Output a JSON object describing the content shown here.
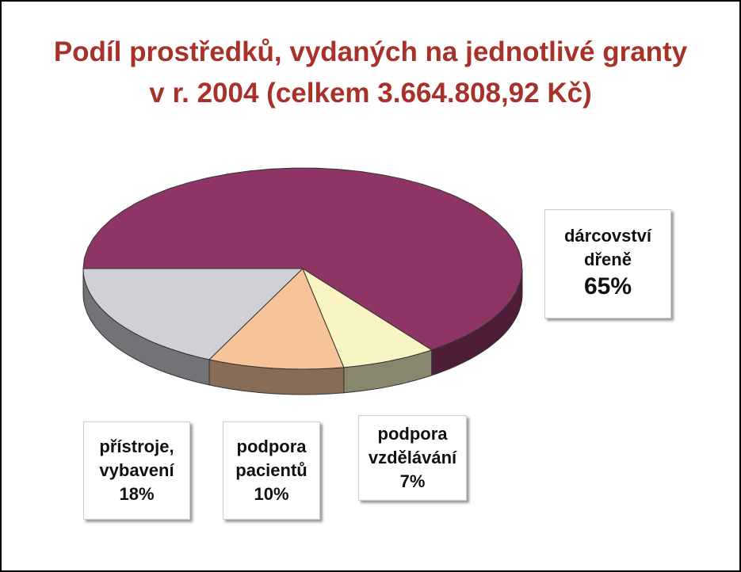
{
  "chart_data": {
    "type": "pie",
    "title": "Podíl prostředků, vydaných na jednotlivé granty",
    "subtitle": "v r. 2004  (celkem 3.664.808,92 Kč)",
    "categories": [
      "dárcovství dřeně",
      "přístroje, vybavení",
      "podpora pacientů",
      "podpora vzdělávání"
    ],
    "values": [
      65,
      18,
      10,
      7
    ],
    "value_labels": [
      "65%",
      "18%",
      "10%",
      "7%"
    ],
    "colors": [
      "#8e3565",
      "#d0d1d6",
      "#f7c49a",
      "#f8f4c4"
    ]
  }
}
